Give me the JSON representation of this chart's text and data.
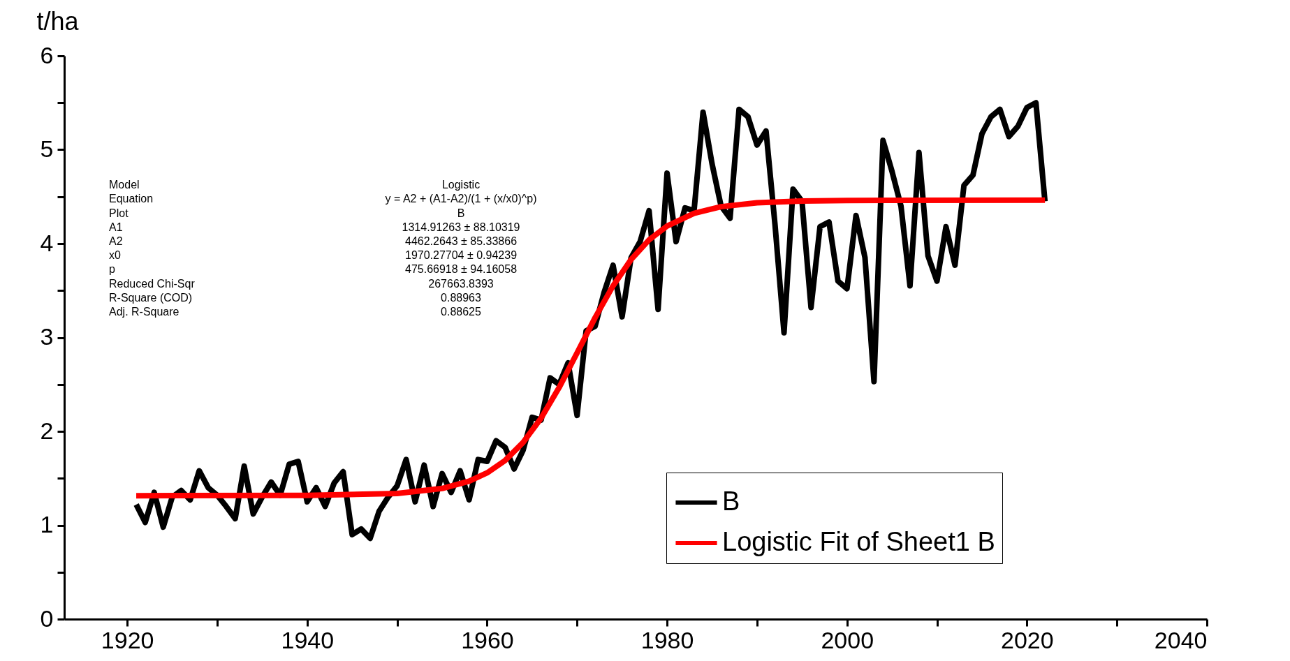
{
  "chart_data": {
    "type": "line",
    "ylabel": "t/ha",
    "xlim": [
      1913,
      2040
    ],
    "xticks": [
      1920,
      {
        "value": 1930,
        "label": null
      },
      1940,
      {
        "value": 1950,
        "label": null
      },
      1960,
      {
        "value": 1970,
        "label": null
      },
      1980,
      {
        "value": 1990,
        "label": null
      },
      2000,
      {
        "value": 2010,
        "label": null
      },
      2020,
      {
        "value": 2030,
        "label": null
      },
      2040
    ],
    "ylim": [
      0,
      6
    ],
    "yticks": [
      0,
      {
        "value": 0.5,
        "label": null
      },
      1,
      {
        "value": 1.5,
        "label": null
      },
      2,
      {
        "value": 2.5,
        "label": null
      },
      3,
      {
        "value": 3.5,
        "label": null
      },
      4,
      {
        "value": 4.5,
        "label": null
      },
      5,
      {
        "value": 5.5,
        "label": null
      },
      6
    ],
    "legend": "bottom right",
    "series": [
      {
        "name": "B",
        "color": "#000000",
        "x": [
          1921,
          1922,
          1923,
          1924,
          1925,
          1926,
          1927,
          1928,
          1929,
          1930,
          1931,
          1932,
          1933,
          1934,
          1935,
          1936,
          1937,
          1938,
          1939,
          1940,
          1941,
          1942,
          1943,
          1944,
          1945,
          1946,
          1947,
          1948,
          1949,
          1950,
          1951,
          1952,
          1953,
          1954,
          1955,
          1956,
          1957,
          1958,
          1959,
          1960,
          1961,
          1962,
          1963,
          1964,
          1965,
          1966,
          1967,
          1968,
          1969,
          1970,
          1971,
          1972,
          1973,
          1974,
          1975,
          1976,
          1977,
          1978,
          1979,
          1980,
          1981,
          1982,
          1983,
          1984,
          1985,
          1986,
          1987,
          1988,
          1989,
          1990,
          1991,
          1992,
          1993,
          1994,
          1995,
          1996,
          1997,
          1998,
          1999,
          2000,
          2001,
          2002,
          2003,
          2004,
          2005,
          2006,
          2007,
          2008,
          2009,
          2010,
          2011,
          2012,
          2013,
          2014,
          2015,
          2016,
          2017,
          2018,
          2019,
          2020,
          2021,
          2022
        ],
        "values": [
          1.22,
          1.03,
          1.35,
          0.98,
          1.3,
          1.37,
          1.27,
          1.58,
          1.4,
          1.32,
          1.2,
          1.07,
          1.63,
          1.12,
          1.3,
          1.46,
          1.32,
          1.65,
          1.68,
          1.25,
          1.4,
          1.2,
          1.45,
          1.57,
          0.9,
          0.96,
          0.86,
          1.15,
          1.3,
          1.42,
          1.7,
          1.25,
          1.64,
          1.2,
          1.55,
          1.35,
          1.58,
          1.27,
          1.7,
          1.68,
          1.9,
          1.83,
          1.6,
          1.8,
          2.15,
          2.12,
          2.57,
          2.5,
          2.73,
          2.17,
          3.07,
          3.12,
          3.48,
          3.77,
          3.22,
          3.85,
          4.02,
          4.35,
          3.3,
          4.75,
          4.02,
          4.38,
          4.35,
          5.4,
          4.85,
          4.4,
          4.27,
          5.43,
          5.35,
          5.05,
          5.2,
          4.2,
          3.05,
          4.58,
          4.45,
          3.32,
          4.18,
          4.23,
          3.6,
          3.52,
          4.3,
          3.85,
          2.53,
          5.1,
          4.77,
          4.4,
          3.55,
          4.97,
          3.87,
          3.6,
          4.18,
          3.77,
          4.62,
          4.73,
          5.17,
          5.35,
          5.43,
          5.14,
          5.25,
          5.45,
          5.5,
          4.45
        ]
      },
      {
        "name": "Logistic Fit of Sheet1 B",
        "color": "#ff0000",
        "x": [
          1921,
          1940,
          1950,
          1955,
          1958,
          1960,
          1962,
          1964,
          1966,
          1968,
          1970,
          1972,
          1974,
          1976,
          1978,
          1980,
          1983,
          1986,
          1990,
          1995,
          2000,
          2022
        ],
        "values": [
          1.315,
          1.317,
          1.338,
          1.392,
          1.469,
          1.558,
          1.69,
          1.882,
          2.141,
          2.466,
          2.836,
          3.211,
          3.551,
          3.83,
          4.04,
          4.187,
          4.323,
          4.393,
          4.435,
          4.454,
          4.46,
          4.462
        ]
      }
    ],
    "annotations": [
      "Model",
      "Logistic",
      "Equation",
      "y = A2 + (A1-A2)/(1 + (x/x0)^p)",
      "Plot",
      "B",
      "A1",
      "1314.91263 ± 88.10319",
      "A2",
      "4462.2643 ± 85.33866",
      "x0",
      "1970.27704 ± 0.94239",
      "p",
      "475.66918 ± 94.16058",
      "Reduced Chi-Sqr",
      "267663.8393",
      "R-Square (COD)",
      "0.88963",
      "Adj. R-Square",
      "0.88625"
    ]
  }
}
